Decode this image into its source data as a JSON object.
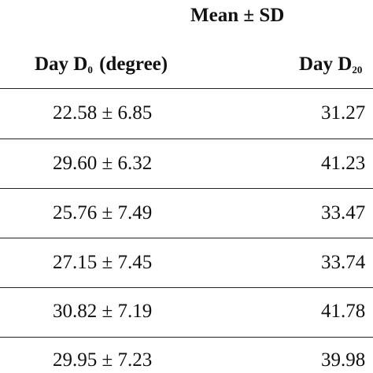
{
  "table": {
    "group_header": "Mean ± SD",
    "columns": [
      {
        "main": "Day D",
        "sub": "0",
        "suffix": " (degree)"
      },
      {
        "main": "Day D",
        "sub": "20",
        "suffix": ""
      }
    ],
    "rows": [
      {
        "d0": "22.58 ± 6.85",
        "d20": "31.27"
      },
      {
        "d0": "29.60 ± 6.32",
        "d20": "41.23"
      },
      {
        "d0": "25.76 ± 7.49",
        "d20": "33.47"
      },
      {
        "d0": "27.15 ± 7.45",
        "d20": "33.74"
      },
      {
        "d0": "30.82 ± 7.19",
        "d20": "41.78"
      },
      {
        "d0": "29.95 ± 7.23",
        "d20": "39.98"
      }
    ]
  }
}
